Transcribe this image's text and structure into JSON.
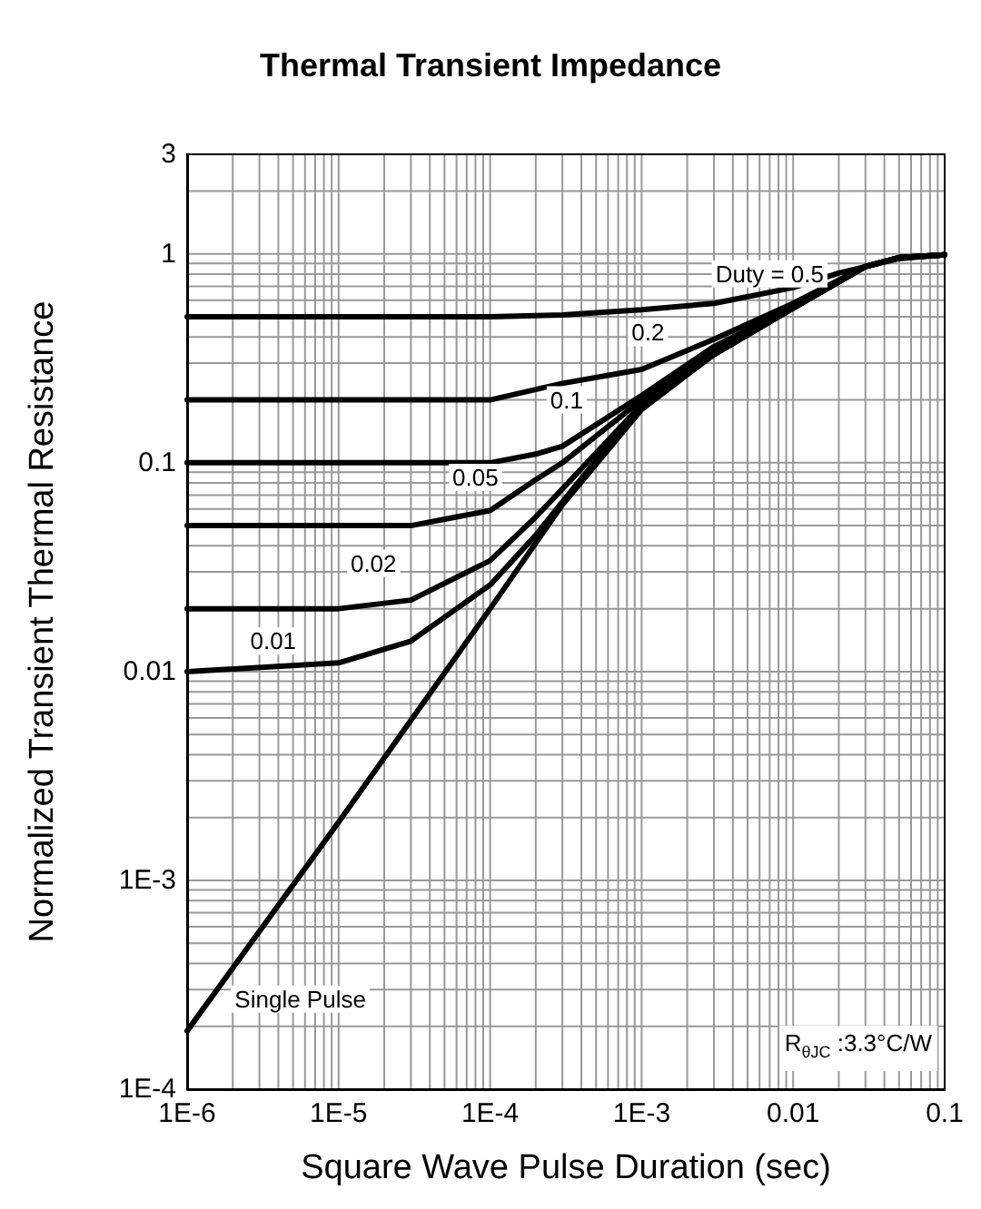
{
  "chart_data": {
    "type": "line",
    "title": "Thermal Transient Impedance",
    "xlabel": "Square Wave Pulse Duration (sec)",
    "ylabel": "Normalized Transient Thermal Resistance",
    "log": "xy",
    "grid": true,
    "marker": "none",
    "line_style": "solid",
    "xlim": [
      1e-06,
      0.1
    ],
    "ylim": [
      0.0001,
      3
    ],
    "xticks": [
      {
        "value": 1e-06,
        "label": "1E-6"
      },
      {
        "value": 1e-05,
        "label": "1E-5"
      },
      {
        "value": 0.0001,
        "label": "1E-4"
      },
      {
        "value": 0.001,
        "label": "1E-3"
      },
      0.01,
      0.1
    ],
    "yticks": [
      {
        "value": 0.0001,
        "label": "1E-4"
      },
      {
        "value": 0.001,
        "label": "1E-3"
      },
      0.01,
      0.1,
      1,
      3
    ],
    "series": [
      {
        "color": "#000000",
        "x": [
          1e-06,
          1e-05,
          0.0001,
          0.0003,
          0.001,
          0.003,
          0.01,
          0.02,
          0.05,
          0.1
        ],
        "values": [
          0.5,
          0.5,
          0.5,
          0.51,
          0.54,
          0.58,
          0.69,
          0.81,
          0.95,
          0.99
        ]
      },
      {
        "color": "#000000",
        "x": [
          1e-06,
          1e-05,
          0.0001,
          0.0003,
          0.001,
          0.003,
          0.01,
          0.03,
          0.05,
          0.1
        ],
        "values": [
          0.2,
          0.2,
          0.2,
          0.24,
          0.28,
          0.39,
          0.58,
          0.87,
          0.96,
          0.99
        ]
      },
      {
        "color": "#000000",
        "x": [
          1e-06,
          1e-05,
          0.0001,
          0.0002,
          0.0003,
          0.001,
          0.003,
          0.01,
          0.03,
          0.05,
          0.1
        ],
        "values": [
          0.1,
          0.1,
          0.1,
          0.11,
          0.12,
          0.21,
          0.36,
          0.56,
          0.87,
          0.96,
          0.99
        ]
      },
      {
        "color": "#000000",
        "x": [
          1e-06,
          1e-05,
          3e-05,
          0.0001,
          0.0002,
          0.0003,
          0.001,
          0.003,
          0.01,
          0.03,
          0.05,
          0.1
        ],
        "values": [
          0.05,
          0.05,
          0.05,
          0.059,
          0.083,
          0.1,
          0.2,
          0.34,
          0.55,
          0.87,
          0.96,
          0.99
        ]
      },
      {
        "color": "#000000",
        "x": [
          1e-06,
          1e-05,
          3e-05,
          0.0001,
          0.0002,
          0.0003,
          0.001,
          0.003,
          0.01,
          0.03,
          0.05,
          0.1
        ],
        "values": [
          0.02,
          0.02,
          0.022,
          0.034,
          0.055,
          0.075,
          0.19,
          0.33,
          0.55,
          0.87,
          0.96,
          0.99
        ]
      },
      {
        "color": "#000000",
        "x": [
          1e-06,
          1e-05,
          3e-05,
          6e-05,
          0.0001,
          0.0002,
          0.0003,
          0.001,
          0.003,
          0.01,
          0.03,
          0.05,
          0.1
        ],
        "values": [
          0.01,
          0.011,
          0.014,
          0.02,
          0.026,
          0.045,
          0.065,
          0.19,
          0.33,
          0.55,
          0.87,
          0.96,
          0.99
        ]
      },
      {
        "color": "#000000",
        "x": [
          1e-06,
          1e-05,
          0.0001,
          0.0003,
          0.001,
          0.003,
          0.01,
          0.03,
          0.05,
          0.1
        ],
        "values": [
          0.00019,
          0.0019,
          0.02,
          0.063,
          0.18,
          0.33,
          0.55,
          0.87,
          0.96,
          0.99
        ]
      }
    ],
    "annotations": [
      {
        "text": "Duty = 0.5",
        "x": 0.007,
        "y": 0.65
      },
      {
        "text": "0.2",
        "x": 0.0011,
        "y": 0.42
      },
      {
        "text": "0.1",
        "x": 0.00032,
        "y": 0.2
      },
      {
        "text": "0.05",
        "x": 8e-05,
        "y": 0.085
      },
      {
        "text": "0.02",
        "x": 1.7e-05,
        "y": 0.033
      },
      {
        "text": "0.01",
        "x": 3.7e-06,
        "y": 0.014
      },
      {
        "text": "Single Pulse",
        "x": 1.4e-06,
        "y": 0.00027
      },
      "R$_{θJC}$ :3.3°C/W"
    ]
  }
}
